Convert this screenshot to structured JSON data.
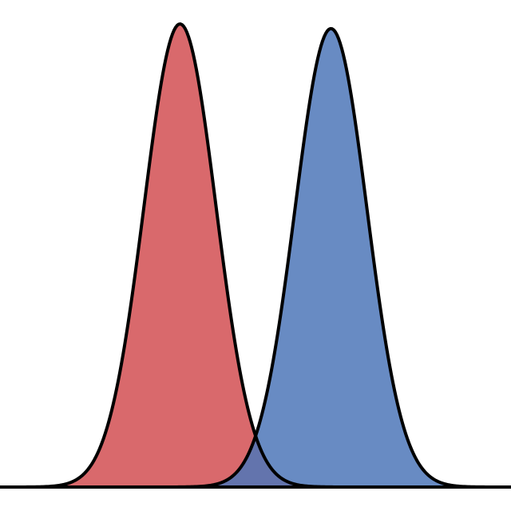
{
  "chart_data": {
    "type": "area",
    "title": "",
    "xlabel": "",
    "ylabel": "",
    "grid": false,
    "legend": "none",
    "xlim": [
      -4.3,
      4.5
    ],
    "ylim": [
      0,
      1.0
    ],
    "series": [
      {
        "distribution": "normal",
        "mean": -1.2,
        "sd": 0.62,
        "peak": 1.0,
        "fill": "#D9696C",
        "opacity": 1.0
      },
      {
        "distribution": "normal",
        "mean": 1.4,
        "sd": 0.62,
        "peak": 0.99,
        "fill": "#4E77B8",
        "opacity": 0.85
      }
    ],
    "outline_color": "#000000"
  }
}
